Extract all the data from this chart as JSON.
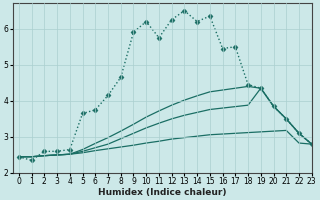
{
  "xlabel": "Humidex (Indice chaleur)",
  "background_color": "#cce8e8",
  "grid_color": "#aacfcf",
  "line_color": "#1a6e64",
  "xlim": [
    -0.5,
    23
  ],
  "ylim": [
    2.0,
    6.7
  ],
  "xticks": [
    0,
    1,
    2,
    3,
    4,
    5,
    6,
    7,
    8,
    9,
    10,
    11,
    12,
    13,
    14,
    15,
    16,
    17,
    18,
    19,
    20,
    21,
    22,
    23
  ],
  "yticks": [
    2,
    3,
    4,
    5,
    6
  ],
  "series": [
    {
      "x": [
        0,
        1,
        2,
        3,
        4,
        5,
        6,
        7,
        8,
        9,
        10,
        11,
        12,
        13,
        14,
        15,
        16,
        17,
        18,
        19,
        20,
        21,
        22,
        23
      ],
      "y": [
        2.45,
        2.35,
        2.6,
        2.6,
        2.65,
        3.65,
        3.75,
        4.15,
        4.65,
        5.9,
        6.2,
        5.75,
        6.25,
        6.5,
        6.2,
        6.35,
        5.45,
        5.5,
        4.45,
        4.35,
        3.85,
        3.5,
        3.1,
        2.8
      ],
      "style": "dotted",
      "marker": "D",
      "markersize": 2.5
    },
    {
      "x": [
        0,
        1,
        2,
        3,
        4,
        5,
        6,
        7,
        8,
        9,
        10,
        11,
        12,
        13,
        14,
        15,
        16,
        17,
        18,
        19,
        20,
        21,
        22,
        23
      ],
      "y": [
        2.45,
        2.45,
        2.48,
        2.5,
        2.52,
        2.56,
        2.62,
        2.67,
        2.72,
        2.77,
        2.83,
        2.88,
        2.94,
        2.98,
        3.02,
        3.06,
        3.08,
        3.1,
        3.12,
        3.14,
        3.16,
        3.18,
        2.83,
        2.8
      ],
      "style": "solid",
      "marker": null,
      "markersize": 0
    },
    {
      "x": [
        0,
        1,
        2,
        3,
        4,
        5,
        6,
        7,
        8,
        9,
        10,
        11,
        12,
        13,
        14,
        15,
        16,
        17,
        18,
        19,
        20,
        21,
        22,
        23
      ],
      "y": [
        2.45,
        2.45,
        2.48,
        2.5,
        2.52,
        2.6,
        2.7,
        2.8,
        2.95,
        3.1,
        3.25,
        3.38,
        3.5,
        3.6,
        3.68,
        3.76,
        3.8,
        3.84,
        3.88,
        4.35,
        3.85,
        3.5,
        3.1,
        2.8
      ],
      "style": "solid",
      "marker": null,
      "markersize": 0
    },
    {
      "x": [
        0,
        1,
        2,
        3,
        4,
        5,
        6,
        7,
        8,
        9,
        10,
        11,
        12,
        13,
        14,
        15,
        16,
        17,
        18,
        19,
        20,
        21,
        22,
        23
      ],
      "y": [
        2.45,
        2.45,
        2.48,
        2.5,
        2.52,
        2.65,
        2.82,
        2.98,
        3.16,
        3.35,
        3.55,
        3.72,
        3.88,
        4.02,
        4.14,
        4.25,
        4.3,
        4.35,
        4.4,
        4.35,
        3.85,
        3.5,
        3.1,
        2.8
      ],
      "style": "solid",
      "marker": null,
      "markersize": 0
    }
  ]
}
